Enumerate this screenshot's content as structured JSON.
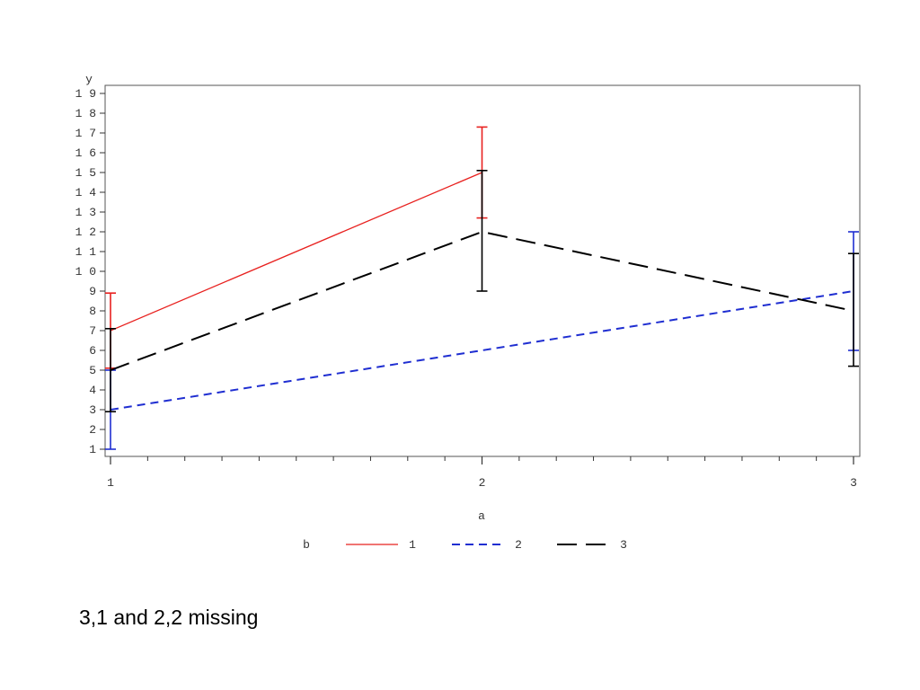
{
  "chart_data": {
    "type": "line",
    "xlabel": "a",
    "ylabel": "y",
    "x_categories": [
      "1",
      "2",
      "3"
    ],
    "x_values": [
      1,
      2,
      3
    ],
    "xlim": [
      1,
      3
    ],
    "ylim": [
      1,
      19
    ],
    "y_ticks": [
      "1",
      "2",
      "3",
      "4",
      "5",
      "6",
      "7",
      "8",
      "9",
      "10",
      "11",
      "12",
      "13",
      "14",
      "15",
      "16",
      "17",
      "18",
      "19"
    ],
    "legend_title": "b",
    "legend_placement": "bottom",
    "grid": false,
    "series": [
      {
        "name": "1",
        "color": "#e8211f",
        "style": "solid",
        "points": [
          {
            "x": 1,
            "y": 7,
            "lo": 5.1,
            "hi": 8.9
          },
          {
            "x": 2,
            "y": 15,
            "lo": 12.7,
            "hi": 17.3
          }
        ]
      },
      {
        "name": "2",
        "color": "#1f2ed1",
        "style": "short-dash",
        "points": [
          {
            "x": 1,
            "y": 3,
            "lo": 1,
            "hi": 5
          },
          {
            "x": 3,
            "y": 9,
            "lo": 6,
            "hi": 12
          }
        ]
      },
      {
        "name": "3",
        "color": "#000000",
        "style": "long-dash",
        "points": [
          {
            "x": 1,
            "y": 5,
            "lo": 2.9,
            "hi": 7.1
          },
          {
            "x": 2,
            "y": 12,
            "lo": 9,
            "hi": 15.1
          },
          {
            "x": 3,
            "y": 8,
            "lo": 5.2,
            "hi": 10.9
          }
        ]
      }
    ]
  },
  "caption": "3,1 and 2,2 missing"
}
